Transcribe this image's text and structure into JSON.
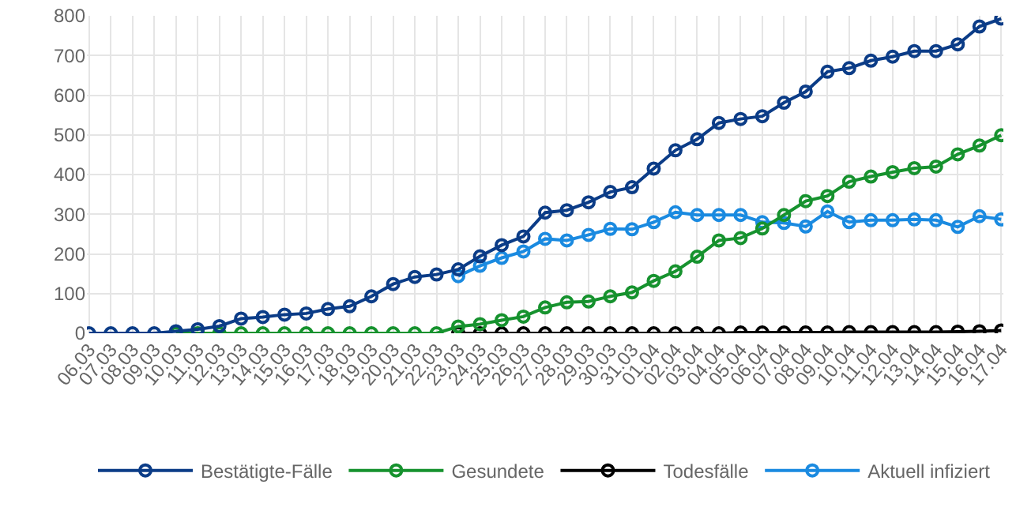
{
  "chart_data": {
    "type": "line",
    "categories": [
      "06.03",
      "07.03",
      "08.03",
      "09.03",
      "10.03",
      "11.03",
      "12.03",
      "13.03",
      "14.03",
      "15.03",
      "16.03",
      "17.03",
      "18.03",
      "19.03",
      "20.03",
      "21.03",
      "22.03",
      "23.03",
      "24.03",
      "25.03",
      "26.03",
      "27.03",
      "28.03",
      "29.03",
      "30.03",
      "31.03",
      "01.04",
      "02.04",
      "03.04",
      "04.04",
      "05.04",
      "06.04",
      "07.04",
      "08.04",
      "09.04",
      "10.04",
      "11.04",
      "12.04",
      "13.04",
      "14.04",
      "15.04",
      "16.04",
      "17.04"
    ],
    "series": [
      {
        "name": "Bestätigte-Fälle",
        "color": "#0b3c87",
        "values": [
          0,
          0,
          0,
          0,
          5,
          10,
          18,
          37,
          41,
          47,
          50,
          61,
          68,
          93,
          124,
          142,
          148,
          161,
          194,
          222,
          244,
          304,
          310,
          330,
          356,
          368,
          415,
          461,
          489,
          530,
          540,
          547,
          581,
          609,
          659,
          668,
          687,
          697,
          711,
          711,
          728,
          773,
          793
        ]
      },
      {
        "name": "Gesundete",
        "color": "#16922e",
        "values": [
          null,
          null,
          null,
          null,
          0,
          0,
          0,
          0,
          0,
          0,
          0,
          0,
          0,
          0,
          0,
          0,
          0,
          17,
          23,
          33,
          42,
          65,
          78,
          80,
          93,
          103,
          132,
          156,
          193,
          234,
          240,
          264,
          298,
          333,
          346,
          382,
          395,
          406,
          416,
          420,
          451,
          473,
          499
        ]
      },
      {
        "name": "Todesfälle",
        "color": "#000000",
        "values": [
          null,
          null,
          null,
          null,
          null,
          null,
          null,
          null,
          null,
          null,
          null,
          null,
          null,
          null,
          null,
          null,
          null,
          0,
          0,
          0,
          0,
          0,
          0,
          0,
          0,
          0,
          0,
          0,
          0,
          0,
          2,
          2,
          2,
          2,
          2,
          3,
          3,
          3,
          3,
          3,
          4,
          5,
          7
        ]
      },
      {
        "name": "Aktuell infiziert",
        "color": "#1a8ae0",
        "values": [
          null,
          null,
          null,
          null,
          null,
          null,
          null,
          null,
          null,
          null,
          null,
          null,
          null,
          null,
          null,
          null,
          null,
          144,
          170,
          190,
          206,
          238,
          234,
          248,
          263,
          262,
          280,
          305,
          298,
          298,
          298,
          280,
          278,
          269,
          307,
          280,
          285,
          285,
          287,
          285,
          268,
          295,
          287
        ]
      }
    ],
    "ylim": [
      0,
      800
    ],
    "yticks": [
      0,
      100,
      200,
      300,
      400,
      500,
      600,
      700,
      800
    ],
    "grid": true,
    "legend": "bottom",
    "marker": "circle",
    "line_style": "solid"
  }
}
